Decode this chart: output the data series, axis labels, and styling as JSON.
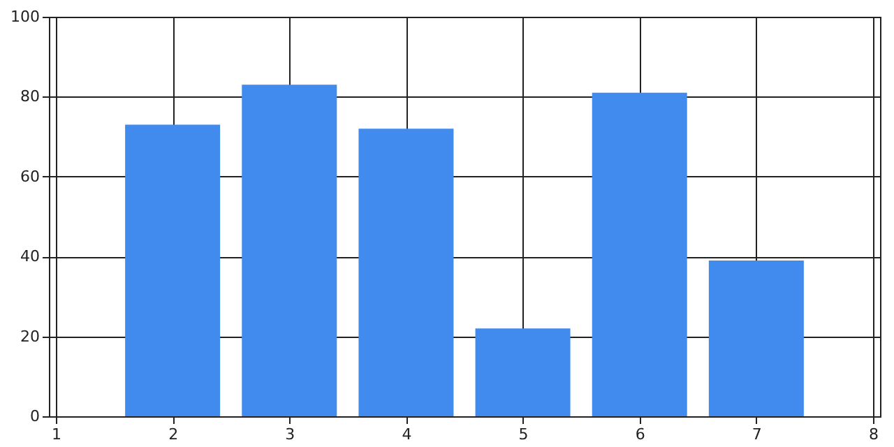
{
  "chart_data": {
    "type": "bar",
    "x": [
      2,
      3,
      4,
      5,
      6,
      7
    ],
    "values": [
      73,
      83,
      72,
      22,
      81,
      39
    ],
    "color": "#418bef",
    "xlim": [
      1,
      8
    ],
    "xticks": [
      1,
      2,
      3,
      4,
      5,
      6,
      7,
      8
    ],
    "ylim": [
      0,
      100
    ],
    "yticks": [
      0,
      20,
      40,
      60,
      80,
      100
    ],
    "grid": true
  }
}
